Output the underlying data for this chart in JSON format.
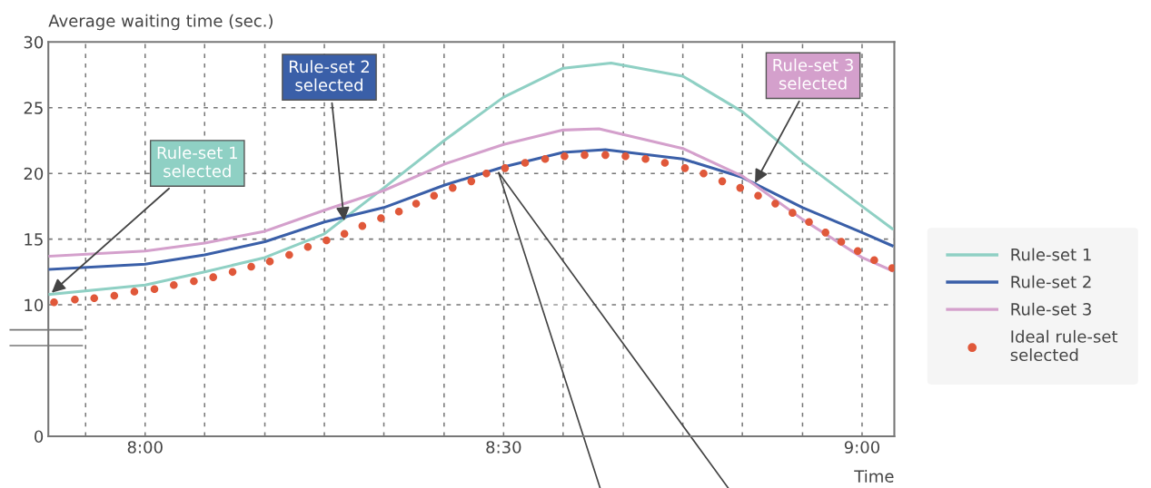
{
  "chart_data": {
    "type": "line",
    "xlabel": "Time",
    "ylabel": "Average waiting time (sec.)",
    "xlim": [
      7.865,
      9.045
    ],
    "xticks": [
      {
        "value": 7.917,
        "label": null
      },
      {
        "value": 8,
        "label": "8:00"
      },
      {
        "value": 8.083,
        "label": null
      },
      {
        "value": 8.167,
        "label": null
      },
      {
        "value": 8.25,
        "label": null
      },
      {
        "value": 8.333,
        "label": null
      },
      {
        "value": 8.417,
        "label": null
      },
      {
        "value": 8.5,
        "label": "8:30"
      },
      {
        "value": 8.583,
        "label": null
      },
      {
        "value": 8.667,
        "label": null
      },
      {
        "value": 8.75,
        "label": null
      },
      {
        "value": 8.833,
        "label": null
      },
      {
        "value": 8.917,
        "label": null
      },
      {
        "value": 9,
        "label": "9:00"
      }
    ],
    "ylim": [
      0,
      30
    ],
    "yticks": [
      0,
      10,
      15,
      20,
      25,
      30
    ],
    "grid": true,
    "legend": "right",
    "series": [
      {
        "name": "Rule-set 1",
        "color": "#8fd0c4",
        "x": [
          7.867,
          8.0,
          8.083,
          8.167,
          8.25,
          8.333,
          8.417,
          8.5,
          8.583,
          8.65,
          8.75,
          8.833,
          8.917,
          9.0,
          9.042
        ],
        "values": [
          10.8,
          11.5,
          12.5,
          13.6,
          15.4,
          18.9,
          22.5,
          25.8,
          28.0,
          28.4,
          27.4,
          24.7,
          20.9,
          17.5,
          15.8
        ]
      },
      {
        "name": "Rule-set 2",
        "color": "#3a5fa8",
        "x": [
          7.867,
          8.0,
          8.083,
          8.167,
          8.25,
          8.333,
          8.417,
          8.5,
          8.583,
          8.642,
          8.75,
          8.833,
          8.917,
          9.0,
          9.042
        ],
        "values": [
          12.7,
          13.1,
          13.8,
          14.8,
          16.3,
          17.4,
          19.1,
          20.5,
          21.6,
          21.8,
          21.1,
          19.7,
          17.4,
          15.5,
          14.5
        ]
      },
      {
        "name": "Rule-set 3",
        "color": "#d4a0cc",
        "x": [
          7.867,
          8.0,
          8.083,
          8.167,
          8.25,
          8.333,
          8.417,
          8.5,
          8.583,
          8.633,
          8.75,
          8.833,
          8.917,
          9.0,
          9.042
        ],
        "values": [
          13.7,
          14.1,
          14.7,
          15.6,
          17.2,
          18.7,
          20.7,
          22.2,
          23.3,
          23.4,
          21.9,
          19.8,
          16.5,
          13.6,
          12.6
        ]
      },
      {
        "name": "Ideal rule-set\nselected",
        "color": "#e0583a",
        "type": "scatter",
        "marker": "circle",
        "x": [
          7.873,
          7.902,
          7.929,
          7.957,
          7.985,
          8.013,
          8.04,
          8.068,
          8.095,
          8.122,
          8.148,
          8.174,
          8.201,
          8.227,
          8.253,
          8.278,
          8.303,
          8.329,
          8.354,
          8.378,
          8.403,
          8.429,
          8.455,
          8.476,
          8.502,
          8.53,
          8.558,
          8.585,
          8.613,
          8.642,
          8.67,
          8.698,
          8.725,
          8.753,
          8.779,
          8.805,
          8.83,
          8.855,
          8.879,
          8.903,
          8.926,
          8.949,
          8.971,
          8.994,
          9.017,
          9.042
        ],
        "values": [
          10.2,
          10.4,
          10.5,
          10.7,
          11.0,
          11.2,
          11.5,
          11.8,
          12.1,
          12.5,
          12.9,
          13.3,
          13.8,
          14.4,
          14.9,
          15.4,
          16.0,
          16.6,
          17.1,
          17.7,
          18.3,
          18.9,
          19.4,
          20.0,
          20.4,
          20.8,
          21.1,
          21.3,
          21.4,
          21.4,
          21.3,
          21.1,
          20.8,
          20.4,
          20.0,
          19.4,
          18.9,
          18.3,
          17.7,
          17.0,
          16.3,
          15.5,
          14.8,
          14.1,
          13.4,
          12.8
        ]
      }
    ],
    "annotations": [
      {
        "text": "Rule-set 1\nselected",
        "x": 7.867,
        "y": 10.8
      },
      {
        "text": "Rule-set 2\nselected",
        "x": 8.278,
        "y": 16.2
      },
      {
        "text": "Rule-set 3\nselected",
        "x": 8.849,
        "y": 19.1
      }
    ]
  }
}
